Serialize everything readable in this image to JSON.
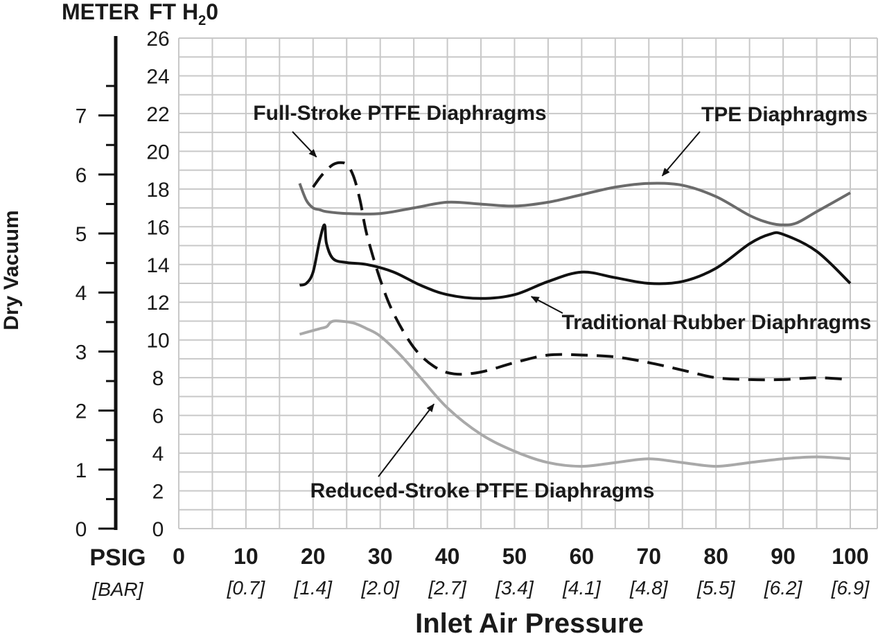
{
  "chart_data": {
    "type": "line",
    "xlabel": "Inlet Air Pressure",
    "ylabel": "Dry Vacuum",
    "x_unit_primary": "PSIG",
    "x_unit_secondary": "[BAR]",
    "y_unit_left": "METER",
    "y_unit_right_prefix": "FT H",
    "y_unit_right_sub": "2",
    "y_unit_right_suffix": "0",
    "xlim": [
      0,
      100
    ],
    "ylim": [
      0,
      26
    ],
    "x_ticks": [
      0,
      10,
      20,
      30,
      40,
      50,
      60,
      70,
      80,
      90,
      100
    ],
    "x_tick_labels": [
      "0",
      "10",
      "20",
      "30",
      "40",
      "50",
      "60",
      "70",
      "80",
      "90",
      "100"
    ],
    "x_bar_labels": [
      "",
      "[0.7]",
      "[1.4]",
      "[2.0]",
      "[2.7]",
      "[3.4]",
      "[4.1]",
      "[4.8]",
      "[5.5]",
      "[6.2]",
      "[6.9]"
    ],
    "y_ticks": [
      0,
      2,
      4,
      6,
      8,
      10,
      12,
      14,
      16,
      18,
      20,
      22,
      24,
      26
    ],
    "y_tick_labels": [
      "0",
      "2",
      "4",
      "6",
      "8",
      "10",
      "12",
      "14",
      "16",
      "18",
      "20",
      "22",
      "24",
      "26"
    ],
    "meter_ticks": [
      0,
      1,
      2,
      3,
      4,
      5,
      6,
      7
    ],
    "meter_tick_labels": [
      "0",
      "1",
      "2",
      "3",
      "4",
      "5",
      "6",
      "7"
    ],
    "meter_max": 7.9,
    "grid": true,
    "series": [
      {
        "name": "TPE Diaphragms",
        "color": "#6b6b6b",
        "style": "solid",
        "x": [
          18,
          19,
          20,
          21,
          22,
          25,
          30,
          35,
          40,
          45,
          50,
          55,
          60,
          65,
          70,
          75,
          80,
          85,
          88,
          90,
          92,
          95,
          100
        ],
        "y": [
          18.3,
          17.4,
          17.0,
          16.9,
          16.8,
          16.7,
          16.7,
          17.0,
          17.3,
          17.2,
          17.1,
          17.3,
          17.7,
          18.1,
          18.3,
          18.2,
          17.6,
          16.6,
          16.2,
          16.1,
          16.2,
          16.8,
          17.8
        ]
      },
      {
        "name": "Traditional Rubber Diaphragms",
        "color": "#111111",
        "style": "solid",
        "x": [
          18,
          19,
          20,
          21,
          21.7,
          22,
          23,
          25,
          28,
          32,
          36,
          40,
          45,
          50,
          55,
          60,
          65,
          70,
          75,
          80,
          85,
          88,
          90,
          95,
          100
        ],
        "y": [
          12.9,
          13.0,
          13.6,
          15.3,
          16.1,
          15.1,
          14.3,
          14.1,
          14.0,
          13.6,
          12.9,
          12.4,
          12.2,
          12.4,
          13.1,
          13.6,
          13.3,
          13.0,
          13.1,
          13.8,
          15.1,
          15.6,
          15.6,
          14.7,
          13.0
        ]
      },
      {
        "name": "Full-Stroke PTFE Diaphragms",
        "color": "#111111",
        "style": "dashed",
        "x": [
          20,
          21,
          22,
          23,
          24,
          25,
          26,
          27,
          28,
          30,
          32,
          35,
          38,
          41,
          45,
          50,
          55,
          60,
          65,
          70,
          75,
          80,
          85,
          90,
          95,
          100
        ],
        "y": [
          18.1,
          18.6,
          19.0,
          19.3,
          19.4,
          19.3,
          18.7,
          17.4,
          15.6,
          13.2,
          11.4,
          9.6,
          8.6,
          8.2,
          8.3,
          8.8,
          9.2,
          9.2,
          9.1,
          8.8,
          8.4,
          8.0,
          7.9,
          7.9,
          8.0,
          7.9
        ]
      },
      {
        "name": "Reduced-Stroke PTFE Diaphragms",
        "color": "#a9a9a9",
        "style": "solid",
        "x": [
          18,
          20,
          21,
          22,
          22.5,
          23,
          24,
          26,
          28,
          30,
          33,
          36,
          40,
          45,
          50,
          55,
          60,
          65,
          70,
          75,
          80,
          85,
          90,
          95,
          100
        ],
        "y": [
          10.3,
          10.5,
          10.6,
          10.7,
          10.9,
          11.0,
          11.0,
          10.9,
          10.6,
          10.2,
          9.2,
          8.0,
          6.4,
          5.0,
          4.1,
          3.5,
          3.3,
          3.5,
          3.7,
          3.5,
          3.3,
          3.5,
          3.7,
          3.8,
          3.7
        ]
      }
    ],
    "annotations": [
      {
        "text": "Full-Stroke PTFE Diaphragms",
        "series": "Full-Stroke PTFE Diaphragms",
        "point": [
          20.5,
          19.7
        ]
      },
      {
        "text": "TPE Diaphragms",
        "series": "TPE Diaphragms",
        "point": [
          72,
          18.7
        ]
      },
      {
        "text": "Traditional Rubber Diaphragms",
        "series": "Traditional Rubber Diaphragms",
        "point": [
          52.5,
          12.3
        ]
      },
      {
        "text": "Reduced-Stroke PTFE Diaphragms",
        "series": "Reduced-Stroke PTFE Diaphragms",
        "point": [
          38,
          6.6
        ]
      }
    ]
  }
}
